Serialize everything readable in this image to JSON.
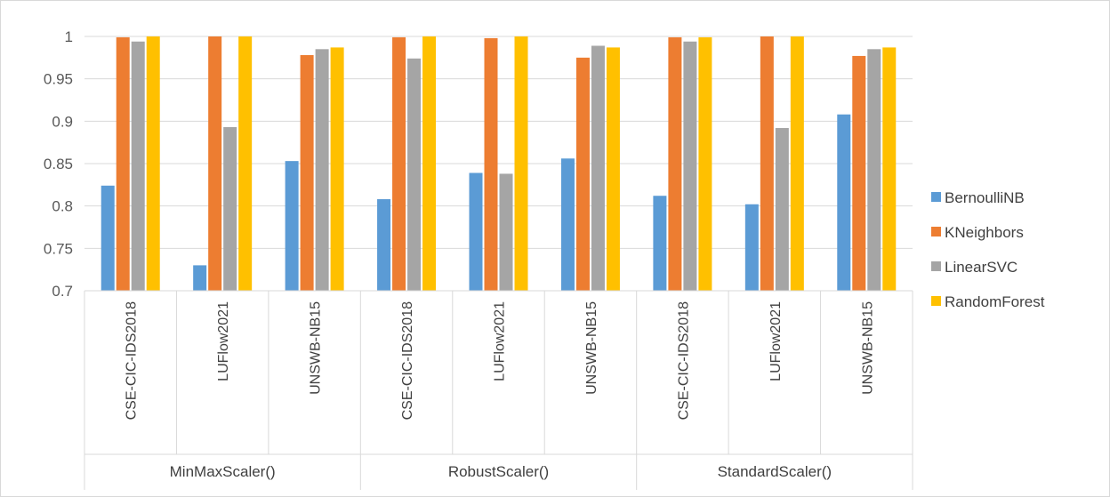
{
  "chart_data": {
    "type": "bar",
    "groups": [
      {
        "label": "MinMaxScaler()",
        "categories": [
          "CSE-CIC-IDS2018",
          "LUFlow2021",
          "UNSWB-NB15"
        ]
      },
      {
        "label": "RobustScaler()",
        "categories": [
          "CSE-CIC-IDS2018",
          "LUFlow2021",
          "UNSWB-NB15"
        ]
      },
      {
        "label": "StandardScaler()",
        "categories": [
          "CSE-CIC-IDS2018",
          "LUFlow2021",
          "UNSWB-NB15"
        ]
      }
    ],
    "series": [
      {
        "name": "BernoulliNB",
        "color": "#5b9bd5",
        "values": [
          0.824,
          0.73,
          0.853,
          0.808,
          0.839,
          0.856,
          0.812,
          0.802,
          0.908
        ]
      },
      {
        "name": "KNeighbors",
        "color": "#ed7d31",
        "values": [
          0.999,
          1.0,
          0.978,
          0.999,
          0.998,
          0.975,
          0.999,
          1.0,
          0.977
        ]
      },
      {
        "name": "LinearSVC",
        "color": "#a5a5a5",
        "values": [
          0.994,
          0.893,
          0.985,
          0.974,
          0.838,
          0.989,
          0.994,
          0.892,
          0.985
        ]
      },
      {
        "name": "RandomForest",
        "color": "#ffc000",
        "values": [
          1.0,
          1.0,
          0.987,
          1.0,
          1.0,
          0.987,
          0.999,
          1.0,
          0.987
        ]
      }
    ],
    "yticks": [
      "0.7",
      "0.75",
      "0.8",
      "0.85",
      "0.9",
      "0.95",
      "1"
    ],
    "ylim": [
      0.7,
      1.0
    ],
    "grid": true,
    "legend_position": "right"
  }
}
